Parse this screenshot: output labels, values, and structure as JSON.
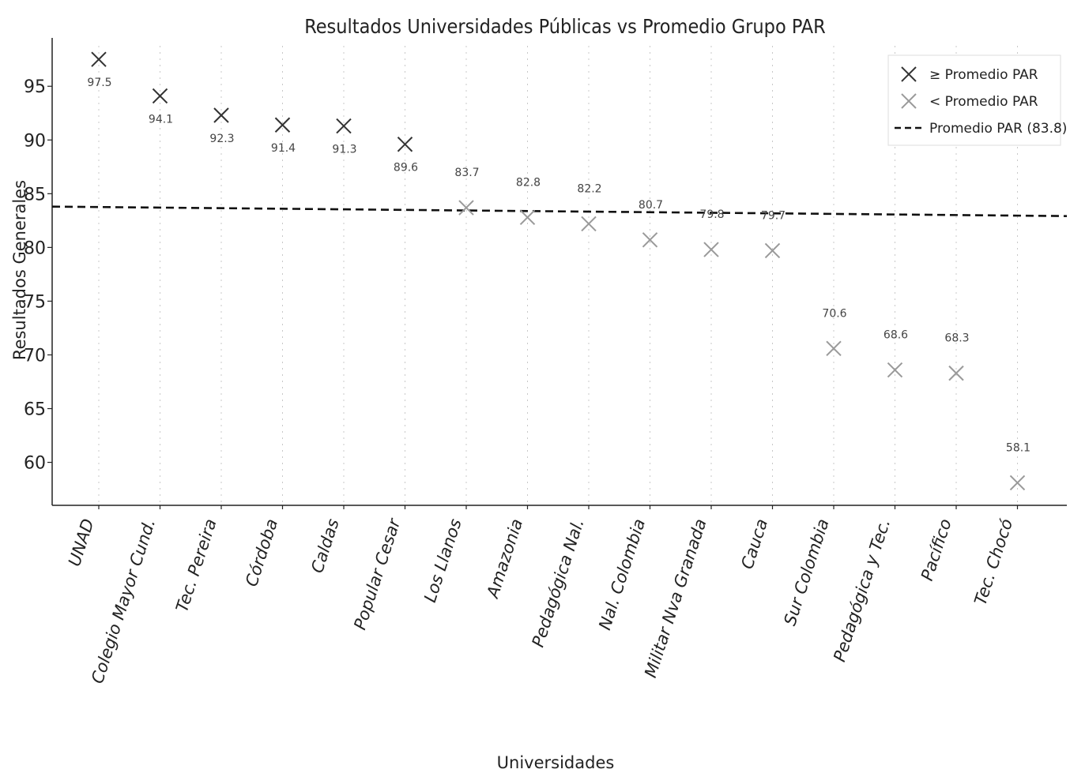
{
  "chart_data": {
    "type": "scatter",
    "title": "Resultados Universidades Públicas vs Promedio Grupo PAR",
    "xlabel": "Universidades",
    "ylabel": "Resultados Generales",
    "categories": [
      "UNAD",
      "Colegio Mayor Cund.",
      "Tec. Pereira",
      "Córdoba",
      "Caldas",
      "Popular Cesar",
      "Los Llanos",
      "Amazonia",
      "Pedagógica Nal.",
      "Nal. Colombia",
      "Militar Nva Granada",
      "Cauca",
      "Sur Colombia",
      "Pedagógica y Tec.",
      "Pacífico",
      "Tec. Chocó"
    ],
    "values": [
      97.5,
      94.1,
      92.3,
      91.4,
      91.3,
      89.6,
      83.7,
      82.8,
      82.2,
      80.7,
      79.8,
      79.7,
      70.6,
      68.6,
      68.3,
      58.1
    ],
    "value_labels": [
      "97.5",
      "94.1",
      "92.3",
      "91.4",
      "91.3",
      "89.6",
      "83.7",
      "82.8",
      "82.2",
      "80.7",
      "79.8",
      "79.7",
      "70.6",
      "68.6",
      "68.3",
      "58.1"
    ],
    "above_avg": [
      true,
      true,
      true,
      true,
      true,
      true,
      false,
      false,
      false,
      false,
      false,
      false,
      false,
      false,
      false,
      false
    ],
    "reference_line": {
      "value": 83.8,
      "style": "dashed"
    },
    "yticks": [
      60,
      65,
      70,
      75,
      80,
      85,
      90,
      95
    ],
    "ytick_labels": [
      "60",
      "65",
      "70",
      "75",
      "80",
      "85",
      "90",
      "95"
    ],
    "ylim": [
      56,
      99.5
    ],
    "grid": "vertical dotted",
    "legend": {
      "position": "top-right",
      "entries": [
        "≥ Promedio PAR",
        "< Promedio PAR",
        "Promedio PAR (83.8)"
      ]
    },
    "colors": {
      "above": "#333333",
      "below": "#9a9a9a",
      "reference": "#111111"
    }
  }
}
